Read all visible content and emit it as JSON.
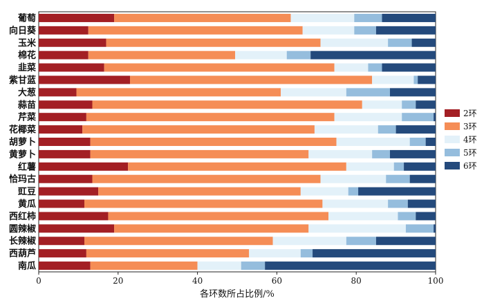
{
  "chart_data": {
    "type": "bar",
    "orientation": "horizontal",
    "stacked": true,
    "title": "",
    "xlabel": "各环数所占比例/%",
    "ylabel": "",
    "xlim": [
      0,
      100
    ],
    "xticks": [
      0,
      20,
      40,
      60,
      80,
      100
    ],
    "grid": false,
    "legend_position": "right",
    "categories": [
      "葡萄",
      "向日葵",
      "玉米",
      "棉花",
      "韭菜",
      "紫甘蓝",
      "大葱",
      "蒜苗",
      "芹菜",
      "花椰菜",
      "胡萝卜",
      "黄萝卜",
      "红薯",
      "恰玛古",
      "豇豆",
      "黄瓜",
      "西红柿",
      "圆辣椒",
      "长辣椒",
      "西葫芦",
      "南瓜"
    ],
    "series": [
      {
        "name": "2环",
        "color": "#a31f24",
        "values": [
          19,
          12.5,
          17,
          12.5,
          16.5,
          23,
          9.5,
          13.5,
          12,
          11,
          13,
          13,
          22.5,
          13.5,
          15,
          11.5,
          17.5,
          19,
          11.5,
          12,
          13
        ]
      },
      {
        "name": "3环",
        "color": "#f58d56",
        "values": [
          44.5,
          54,
          54,
          37,
          58,
          61,
          51.5,
          68,
          62.5,
          58.5,
          62,
          55,
          55,
          57.5,
          51,
          60,
          55.5,
          49,
          47.5,
          41,
          27
        ]
      },
      {
        "name": "4环",
        "color": "#e3f1f9",
        "values": [
          16,
          13,
          17,
          13,
          8.5,
          10.5,
          16.5,
          10,
          17,
          16,
          18.5,
          16,
          12,
          16.5,
          12,
          16.5,
          17.5,
          24.5,
          18.5,
          13,
          11
        ]
      },
      {
        "name": "5环",
        "color": "#95bddd",
        "values": [
          7,
          5.5,
          6,
          6,
          3.5,
          1,
          11,
          3.5,
          8,
          4.5,
          4,
          4.5,
          2.5,
          6,
          2.5,
          5,
          4.5,
          7,
          7.5,
          3,
          6
        ]
      },
      {
        "name": "6环",
        "color": "#244a7c",
        "values": [
          13.5,
          15,
          6,
          31.5,
          13.5,
          4.5,
          11.5,
          5,
          0.5,
          10,
          2.5,
          11.5,
          8,
          6.5,
          19.5,
          7,
          5,
          0.5,
          15,
          31,
          43
        ]
      }
    ]
  }
}
